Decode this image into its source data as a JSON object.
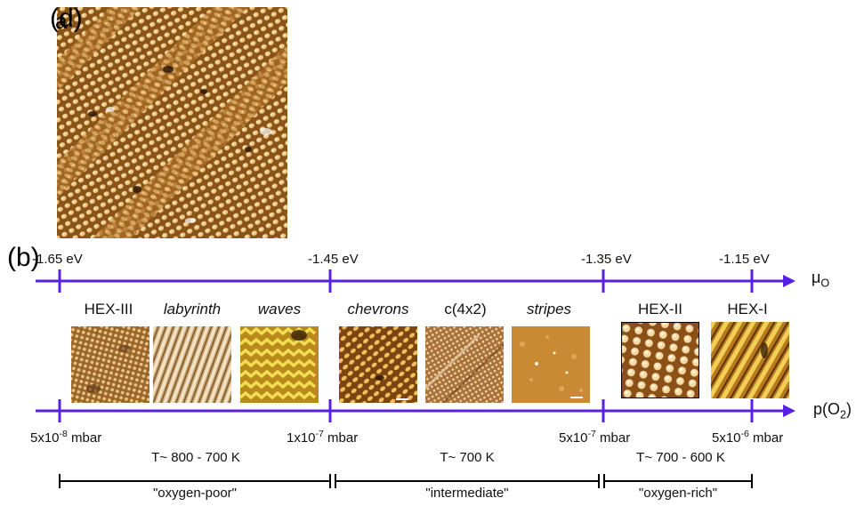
{
  "panel_a": {
    "label_parts": [
      "(d",
      ")"
    ],
    "overlay_letter": "a"
  },
  "panel_b": {
    "label": "(b)",
    "mu_axis": {
      "label_main": "μ",
      "label_sub": "O",
      "color": "#5a1fe6",
      "ticks": [
        "-1.65 eV",
        "-1.45 eV",
        "-1.35 eV",
        "-1.15 eV"
      ]
    },
    "p_axis": {
      "label_pre": "p(O",
      "label_sub": "2",
      "label_post": ")",
      "color": "#5a1fe6",
      "ticks": [
        {
          "mant": "5x10",
          "exp": "-8",
          "unit": " mbar"
        },
        {
          "mant": "1x10",
          "exp": "-7",
          "unit": " mbar"
        },
        {
          "mant": "5x10",
          "exp": "-7",
          "unit": " mbar"
        },
        {
          "mant": "5x10",
          "exp": "-6",
          "unit": " mbar"
        }
      ]
    },
    "phases": [
      {
        "name": "HEX-III",
        "italic": false
      },
      {
        "name": "labyrinth",
        "italic": true
      },
      {
        "name": "waves",
        "italic": true
      },
      {
        "name": "chevrons",
        "italic": true
      },
      {
        "name": "c(4x2)",
        "italic": false
      },
      {
        "name": "stripes",
        "italic": true
      },
      {
        "name": "HEX-II",
        "italic": false
      },
      {
        "name": "HEX-I",
        "italic": false
      }
    ],
    "temperatures": [
      "T~ 800 - 700 K",
      "T~ 700 K",
      "T~ 700 - 600 K"
    ],
    "regimes": [
      "\"oxygen-poor\"",
      "\"intermediate\"",
      "\"oxygen-rich\""
    ]
  }
}
